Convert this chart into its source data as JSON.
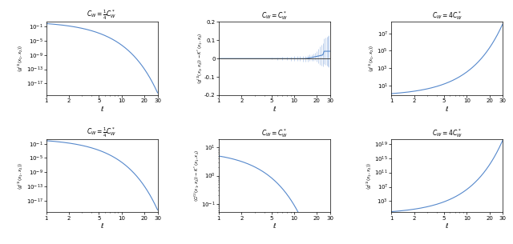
{
  "titles_top": [
    "$C_W = \\frac{1}{4}C^*_W$",
    "$C_W = C^*_W$",
    "$C_W = 4C^*_W$"
  ],
  "titles_bottom": [
    "$C_W = \\frac{1}{4}C^*_W$",
    "$C_W = C^*_W$",
    "$C_W = 4C^*_W$"
  ],
  "ylabel_tl": "$\\langle g^{(1)}(x_1, x_2) \\rangle$",
  "ylabel_tm": "$\\langle g^{(1)}(x_1, x_2) \\rangle - K^*(x_1, x_2)$",
  "ylabel_tr": "$\\langle g^{(1)}(x_1, x_2) \\rangle$",
  "ylabel_bl": "$\\langle g^{(1)}(x_1, x_2) \\rangle$",
  "ylabel_bm": "$\\langle G^{(1)}(x_1, x_2) \\rangle - K^*(x_1, x_2)$",
  "ylabel_br": "$\\langle g^{(1)}(x_1, x_2) \\rangle$",
  "xlabel": "$\\ell$",
  "line_color": "#5588CC",
  "errorbar_color": "#88AADD"
}
